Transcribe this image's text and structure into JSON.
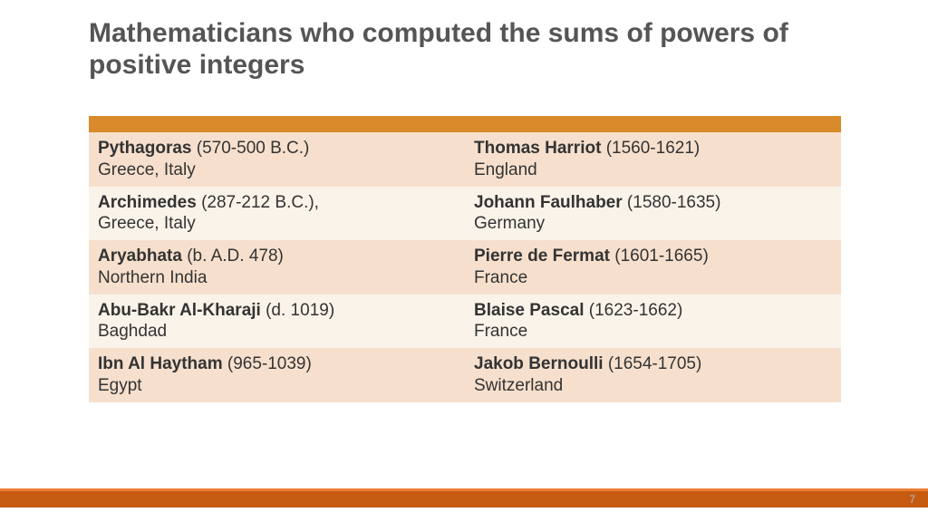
{
  "title": "Mathematicians who computed the sums of powers of positive integers",
  "colors": {
    "header_row": "#d98a2b",
    "row_light": "#faf3ea",
    "row_dark": "#f6e0cd",
    "footer_bar": "#c55a11",
    "footer_line": "#ed7d31",
    "title_text": "#555555",
    "cell_text": "#333333"
  },
  "table": {
    "rows": [
      {
        "left": {
          "name": "Pythagoras",
          "dates": "(570-500 B.C.)",
          "detail_sep": " ",
          "location": "Greece, Italy"
        },
        "right": {
          "name": "Thomas Harriot",
          "dates": "(1560-1621)",
          "detail_sep": " ",
          "location": "England"
        }
      },
      {
        "left": {
          "name": "Archimedes",
          "dates": "(287-212  B.C.),",
          "detail_sep": " ",
          "location": "Greece, Italy"
        },
        "right": {
          "name": "Johann Faulhaber",
          "dates": "(1580-1635)",
          "detail_sep": " ",
          "location": "Germany"
        }
      },
      {
        "left": {
          "name": "Aryabhata",
          "dates": "(b. A.D. 478)",
          "detail_sep": " ",
          "location": "Northern India"
        },
        "right": {
          "name": "Pierre de Fermat",
          "dates": "(1601-1665)",
          "detail_sep": " ",
          "location": "France"
        }
      },
      {
        "left": {
          "name": "Abu-Bakr Al-Kharaji",
          "dates": "(d. 1019)",
          "detail_sep": " ",
          "location": "Baghdad"
        },
        "right": {
          "name": "Blaise Pascal",
          "dates": "(1623-1662)",
          "detail_sep": " ",
          "location": "France"
        }
      },
      {
        "left": {
          "name": "Ibn Al Haytham",
          "dates": "(965-1039)",
          "detail_sep": " ",
          "location": "Egypt"
        },
        "right": {
          "name": "Jakob Bernoulli",
          "dates": "(1654-1705)",
          "detail_sep": " ",
          "location": "Switzerland"
        }
      }
    ]
  },
  "page_number": "7"
}
